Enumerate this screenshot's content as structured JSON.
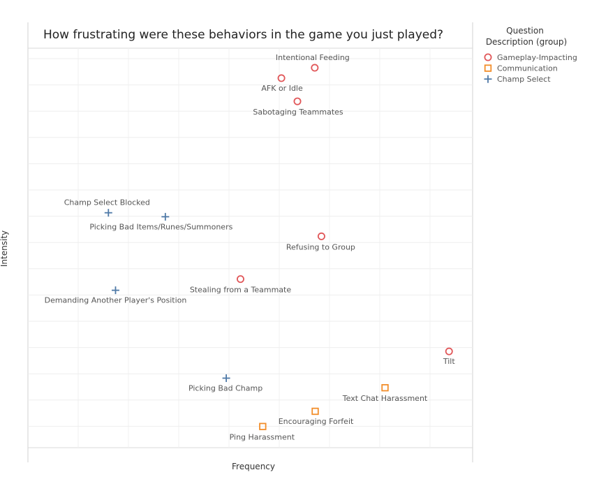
{
  "chart_data": {
    "type": "scatter",
    "title": "How frustrating were these behaviors in the game you just played?",
    "xlabel": "Frequency",
    "ylabel": "Intensity",
    "xlim": [
      0,
      100
    ],
    "ylim": [
      0,
      100
    ],
    "grid": true,
    "legend": {
      "title_line1": "Question",
      "title_line2": "Description (group)",
      "placement": "right"
    },
    "series": [
      {
        "name": "Gameplay-Impacting",
        "marker": "circle",
        "color": "#e15759",
        "points": [
          {
            "label": "Intentional Feeding",
            "x": 64.5,
            "y": 95.1
          },
          {
            "label": "AFK or Idle",
            "x": 57.0,
            "y": 92.5
          },
          {
            "label": "Sabotaging Teammates",
            "x": 60.6,
            "y": 86.7
          },
          {
            "label": "Refusing to Group",
            "x": 66.0,
            "y": 52.9
          },
          {
            "label": "Stealing from a Teammate",
            "x": 47.8,
            "y": 42.2
          },
          {
            "label": "Tilt",
            "x": 94.7,
            "y": 24.1
          }
        ]
      },
      {
        "name": "Communication",
        "marker": "square",
        "color": "#f28e2b",
        "points": [
          {
            "label": "Text Chat Harassment",
            "x": 80.3,
            "y": 15.0
          },
          {
            "label": "Encouraging Forfeit",
            "x": 64.6,
            "y": 9.1
          },
          {
            "label": "Ping Harassment",
            "x": 52.8,
            "y": 5.3
          }
        ]
      },
      {
        "name": "Champ Select",
        "marker": "plus",
        "color": "#4e79a7",
        "points": [
          {
            "label": "Champ Select Blocked",
            "x": 18.1,
            "y": 58.8
          },
          {
            "label": "Picking Bad Items/Runes/Summoners",
            "x": 30.9,
            "y": 57.8
          },
          {
            "label": "Demanding Another Player's Position",
            "x": 19.7,
            "y": 39.4
          },
          {
            "label": "Picking Bad Champ",
            "x": 44.6,
            "y": 17.4
          }
        ]
      }
    ]
  }
}
